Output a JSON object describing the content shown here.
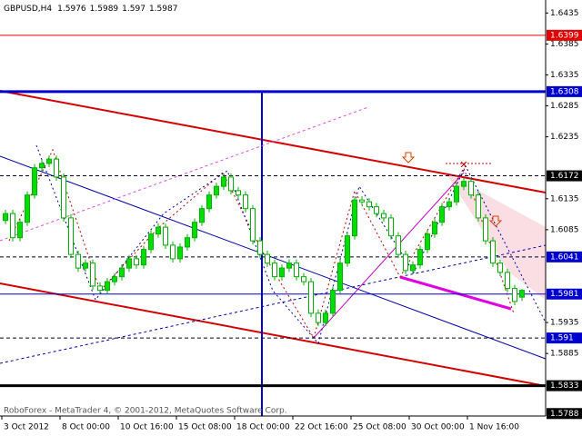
{
  "chart_data": {
    "type": "candlestick",
    "title": "GBPUSD,H4",
    "watermark": "RoboForex - MetaTrader 4, © 2001-2012, MetaQuotes Software Corp.",
    "open": [
      1.61,
      1.6111,
      1.6072,
      1.6097,
      1.6141,
      1.6185,
      1.6192,
      1.6199,
      1.617,
      1.6104,
      1.6045,
      1.6023,
      1.6031,
      1.5994,
      1.5987,
      1.6001,
      1.6009,
      1.6023,
      1.6038,
      1.6028,
      1.6053,
      1.6078,
      1.6089,
      1.606,
      1.6038,
      1.6057,
      1.6072,
      1.6097,
      1.6119,
      1.6141,
      1.6155,
      1.617,
      1.6148,
      1.6141,
      1.6119,
      1.6067,
      1.6045,
      1.6031,
      1.6009,
      1.6023,
      1.6031,
      1.6009,
      1.6001,
      1.595,
      1.5935,
      1.595,
      1.5987,
      1.6031,
      1.6075,
      1.6133,
      1.613,
      1.6122,
      1.6111,
      1.6104,
      1.6075,
      1.6045,
      1.6019,
      1.6028,
      1.6053,
      1.6078,
      1.6097,
      1.6122,
      1.613,
      1.6155,
      1.6163,
      1.6141,
      1.6104,
      1.6067,
      1.6031,
      1.6016,
      1.599,
      1.5976
    ],
    "high": [
      1.6117,
      1.6117,
      1.6103,
      1.6147,
      1.6191,
      1.6198,
      1.6205,
      1.6205,
      1.6176,
      1.611,
      1.6051,
      1.6037,
      1.6037,
      1.6,
      1.6007,
      1.6015,
      1.6029,
      1.6044,
      1.6044,
      1.6059,
      1.6084,
      1.6095,
      1.6095,
      1.6066,
      1.6063,
      1.6078,
      1.6103,
      1.6125,
      1.6147,
      1.6161,
      1.6176,
      1.6176,
      1.6154,
      1.6147,
      1.6125,
      1.6073,
      1.6051,
      1.6037,
      1.6029,
      1.6037,
      1.6037,
      1.6015,
      1.6007,
      1.5956,
      1.5956,
      1.5993,
      1.6037,
      1.6081,
      1.6139,
      1.6139,
      1.6136,
      1.6128,
      1.6117,
      1.611,
      1.6081,
      1.6051,
      1.6034,
      1.6059,
      1.6084,
      1.6103,
      1.6128,
      1.6136,
      1.6161,
      1.6169,
      1.6169,
      1.6147,
      1.611,
      1.6073,
      1.6037,
      1.6022,
      1.5996,
      1.5989
    ],
    "low": [
      1.6094,
      1.6066,
      1.6066,
      1.6091,
      1.6135,
      1.6179,
      1.6186,
      1.6164,
      1.6098,
      1.6039,
      1.6017,
      1.6017,
      1.5988,
      1.5981,
      1.5981,
      1.5995,
      1.6003,
      1.6017,
      1.6022,
      1.6022,
      1.6047,
      1.6072,
      1.6054,
      1.6032,
      1.6032,
      1.6051,
      1.6066,
      1.6091,
      1.6113,
      1.6135,
      1.6149,
      1.6142,
      1.6135,
      1.6113,
      1.6061,
      1.6039,
      1.6025,
      1.6003,
      1.6003,
      1.6017,
      1.6003,
      1.5995,
      1.5944,
      1.5929,
      1.5929,
      1.5944,
      1.5981,
      1.6025,
      1.6069,
      1.6124,
      1.6116,
      1.6105,
      1.6098,
      1.6069,
      1.6039,
      1.6013,
      1.6013,
      1.6022,
      1.6047,
      1.6072,
      1.6091,
      1.6116,
      1.6124,
      1.6149,
      1.6135,
      1.6098,
      1.6061,
      1.6025,
      1.601,
      1.5984,
      1.5963,
      1.597
    ],
    "close": [
      1.6111,
      1.6072,
      1.6097,
      1.6141,
      1.6185,
      1.6192,
      1.6199,
      1.617,
      1.6104,
      1.6045,
      1.6023,
      1.6031,
      1.5994,
      1.5987,
      1.6001,
      1.6009,
      1.6023,
      1.6038,
      1.6028,
      1.6053,
      1.6078,
      1.6089,
      1.606,
      1.6038,
      1.6057,
      1.6072,
      1.6097,
      1.6119,
      1.6141,
      1.6155,
      1.617,
      1.6148,
      1.6141,
      1.6119,
      1.6067,
      1.6045,
      1.6031,
      1.6009,
      1.6023,
      1.6031,
      1.6009,
      1.6001,
      1.595,
      1.5935,
      1.595,
      1.5987,
      1.6031,
      1.6075,
      1.6133,
      1.613,
      1.6122,
      1.6111,
      1.6104,
      1.6075,
      1.6045,
      1.6019,
      1.6028,
      1.6053,
      1.6078,
      1.6097,
      1.6122,
      1.613,
      1.6155,
      1.6163,
      1.6141,
      1.6104,
      1.6067,
      1.6031,
      1.6016,
      1.599,
      1.5969,
      1.5987
    ],
    "up_color": "#00dd00",
    "down_color": "#ffffff",
    "wick_color": "#00b000",
    "xlim": [
      -0.75,
      74.25
    ],
    "xticks": [
      {
        "value": -0.5,
        "label": "3 Oct 2012"
      },
      {
        "value": 7.5,
        "label": "8 Oct 00:00"
      },
      {
        "value": 15.5,
        "label": "10 Oct 16:00"
      },
      {
        "value": 23.5,
        "label": "15 Oct 08:00"
      },
      {
        "value": 31.5,
        "label": "18 Oct 00:00"
      },
      {
        "value": 39.5,
        "label": "22 Oct 16:00"
      },
      {
        "value": 47.5,
        "label": "25 Oct 08:00"
      },
      {
        "value": 55.5,
        "label": "30 Oct 00:00"
      },
      {
        "value": 63.5,
        "label": "1 Nov 16:00"
      }
    ],
    "ylim": [
      1.5784,
      1.6456
    ],
    "yticks": [
      1.6435,
      1.6385,
      1.6335,
      1.6285,
      1.6235,
      1.6135,
      1.6085,
      1.5935,
      1.5885
    ],
    "levels": [
      {
        "value": 1.6399,
        "color": "#e00000",
        "box": "#e00000",
        "width": 1,
        "dash": "none"
      },
      {
        "value": 1.6308,
        "color": "#0000cc",
        "box": "#0000cc",
        "width": 3,
        "dash": "none"
      },
      {
        "value": 1.6172,
        "color": "#000033",
        "box": "#000000",
        "width": 1,
        "dash": "4 3"
      },
      {
        "value": 1.6041,
        "color": "#000033",
        "box": "#0000cc",
        "width": 1,
        "dash": "4 3"
      },
      {
        "value": 1.5981,
        "color": "#0000cc",
        "box": "#0000cc",
        "width": 1,
        "dash": "none"
      },
      {
        "value": 1.591,
        "color": "#000033",
        "box": "#0000cc",
        "width": 1,
        "dash": "4 3"
      },
      {
        "value": 1.5833,
        "color": "#000000",
        "box": "#000000",
        "width": 3,
        "dash": "none"
      },
      {
        "value": 1.5788,
        "color": "none",
        "box": "#000000",
        "width": 1,
        "dash": "none"
      }
    ]
  }
}
